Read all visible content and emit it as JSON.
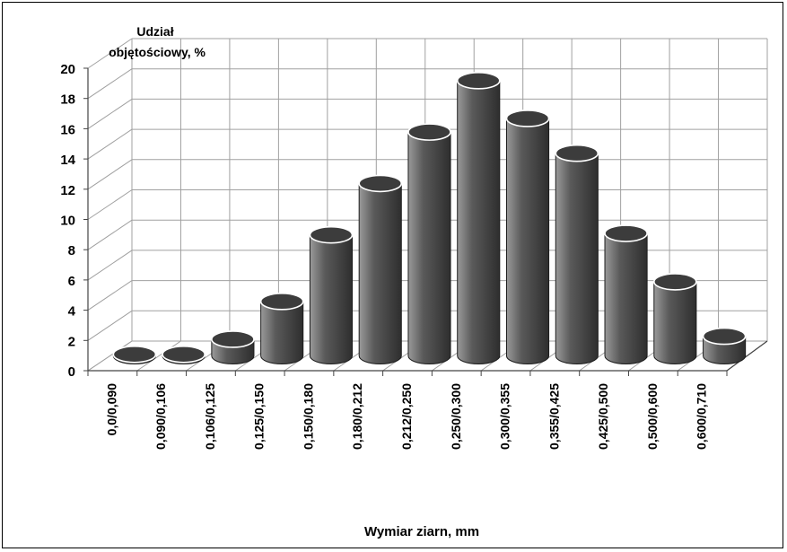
{
  "chart_data": {
    "type": "bar",
    "style": "3d-cylinder",
    "title": "",
    "ylabel_lines": [
      "Udział",
      "objętościowy, %"
    ],
    "xlabel": "Wymiar ziarn, mm",
    "ylim": [
      0,
      20
    ],
    "yticks": [
      "0",
      "2",
      "4",
      "6",
      "8",
      "10",
      "12",
      "14",
      "16",
      "18",
      "20"
    ],
    "grid": true,
    "categories": [
      "0,0/0,090",
      "0,090/0,106",
      "0,106/0,125",
      "0,125/0,150",
      "0,150/0,180",
      "0,180/0,212",
      "0,212/0,250",
      "0,250/0,300",
      "0,300/0,355",
      "0,355/0,425",
      "0,425/0,500",
      "0,500/0,600",
      "0,600/0,710"
    ],
    "values": [
      0.1,
      0.1,
      1.1,
      3.6,
      8.0,
      11.4,
      14.8,
      18.2,
      15.7,
      13.4,
      8.1,
      4.9,
      1.3
    ],
    "colors": {
      "bar_body": "#5a5a5a",
      "bar_light": "#9a9a9a",
      "bar_dark": "#2e2e2e",
      "bar_top": "#3c3c3c",
      "grid": "#a0a0a0"
    }
  }
}
